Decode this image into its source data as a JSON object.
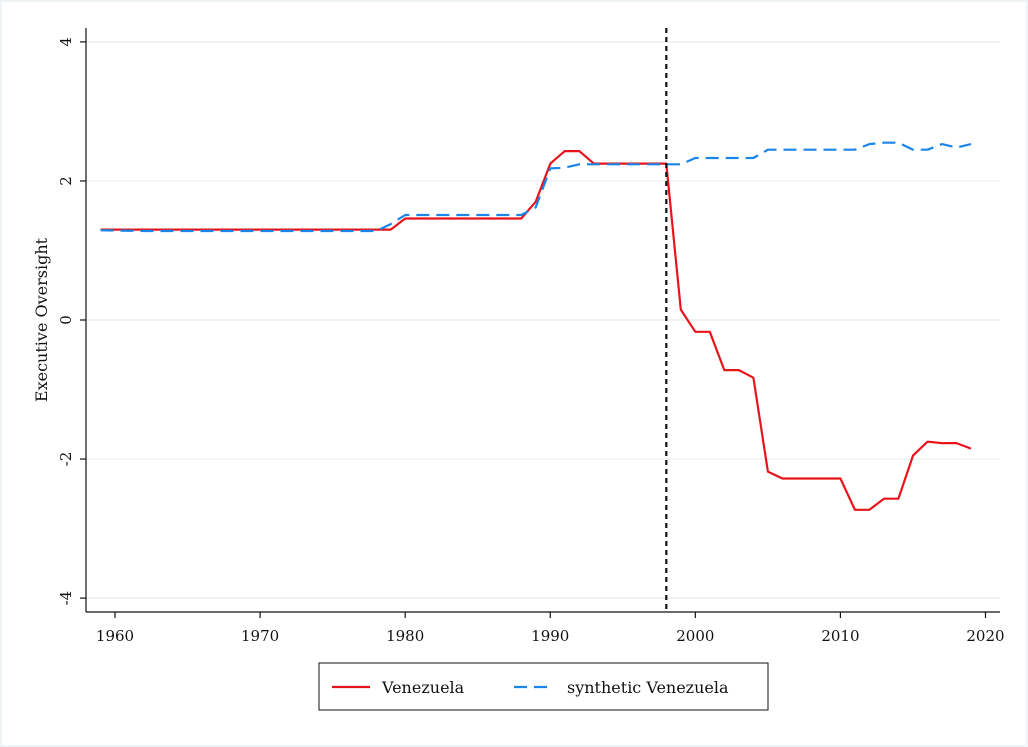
{
  "chart_data": {
    "type": "line",
    "title": "",
    "xlabel": "",
    "ylabel": "Executive Oversight",
    "xlim": [
      1958,
      2021
    ],
    "ylim": [
      -4.2,
      4.2
    ],
    "xticks": [
      1960,
      1970,
      1980,
      1990,
      2000,
      2010,
      2020
    ],
    "yticks": [
      -4,
      -2,
      0,
      2,
      4
    ],
    "grid": "horizontal",
    "vline": {
      "x": 1998,
      "style": "dotted"
    },
    "legend_position": "bottom-center",
    "series": [
      {
        "name": "Venezuela",
        "color": "#e8141c",
        "style": "solid",
        "points": [
          [
            1959,
            1.3
          ],
          [
            1978,
            1.3
          ],
          [
            1979,
            1.3
          ],
          [
            1980,
            1.46
          ],
          [
            1988,
            1.46
          ],
          [
            1989,
            1.7
          ],
          [
            1990,
            2.25
          ],
          [
            1991,
            2.43
          ],
          [
            1992,
            2.43
          ],
          [
            1993,
            2.25
          ],
          [
            1998,
            2.25
          ],
          [
            1999,
            0.15
          ],
          [
            2000,
            -0.17
          ],
          [
            2001,
            -0.17
          ],
          [
            2002,
            -0.72
          ],
          [
            2003,
            -0.72
          ],
          [
            2004,
            -0.83
          ],
          [
            2005,
            -2.18
          ],
          [
            2006,
            -2.28
          ],
          [
            2010,
            -2.28
          ],
          [
            2011,
            -2.73
          ],
          [
            2012,
            -2.73
          ],
          [
            2013,
            -2.57
          ],
          [
            2014,
            -2.57
          ],
          [
            2015,
            -1.95
          ],
          [
            2016,
            -1.75
          ],
          [
            2017,
            -1.77
          ],
          [
            2018,
            -1.77
          ],
          [
            2019,
            -1.85
          ]
        ]
      },
      {
        "name": "synthetic Venezuela",
        "color": "#1a86e8",
        "style": "dashed",
        "points": [
          [
            1959,
            1.29
          ],
          [
            1962,
            1.28
          ],
          [
            1978,
            1.28
          ],
          [
            1979,
            1.38
          ],
          [
            1980,
            1.51
          ],
          [
            1988,
            1.51
          ],
          [
            1989,
            1.62
          ],
          [
            1990,
            2.18
          ],
          [
            1991,
            2.19
          ],
          [
            1992,
            2.24
          ],
          [
            1998,
            2.24
          ],
          [
            1999,
            2.24
          ],
          [
            2000,
            2.33
          ],
          [
            2004,
            2.33
          ],
          [
            2005,
            2.45
          ],
          [
            2011,
            2.45
          ],
          [
            2012,
            2.53
          ],
          [
            2013,
            2.55
          ],
          [
            2014,
            2.55
          ],
          [
            2015,
            2.45
          ],
          [
            2016,
            2.45
          ],
          [
            2017,
            2.53
          ],
          [
            2018,
            2.48
          ],
          [
            2019,
            2.53
          ]
        ]
      }
    ]
  },
  "legend": {
    "items": [
      {
        "label": "Venezuela",
        "color": "#e8141c",
        "style": "solid"
      },
      {
        "label": "synthetic Venezuela",
        "color": "#1a86e8",
        "style": "dashed"
      }
    ]
  }
}
